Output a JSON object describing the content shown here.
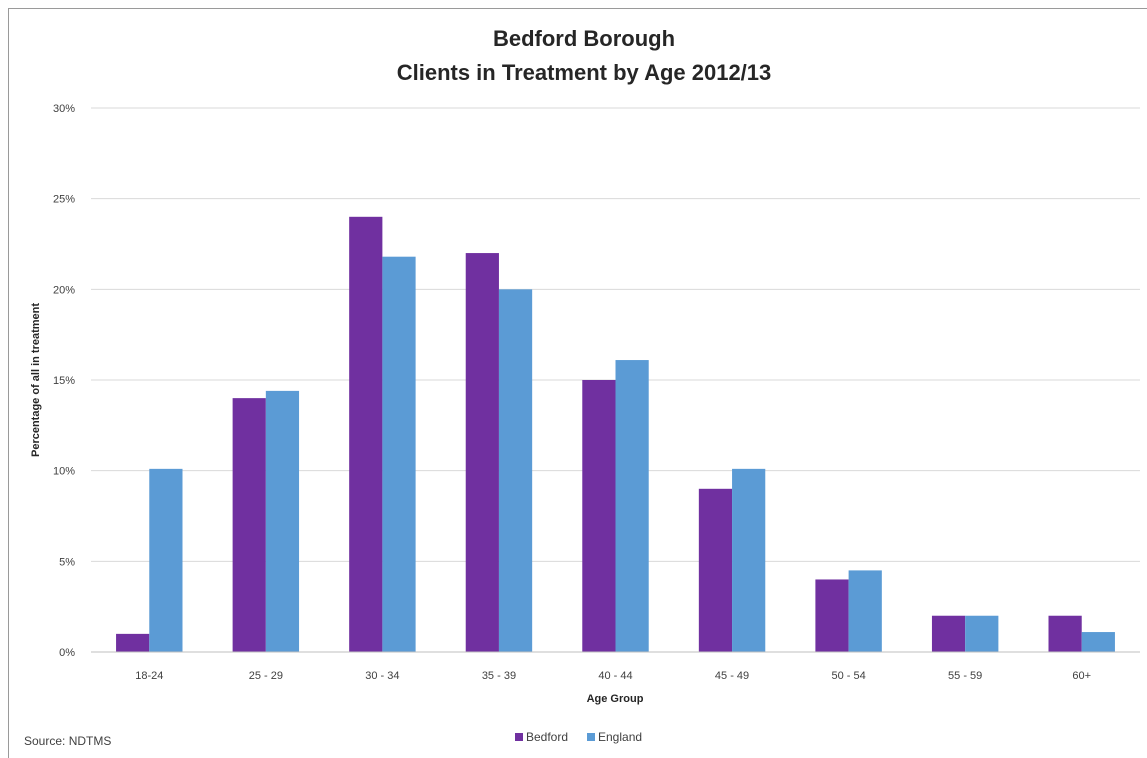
{
  "chart_data": {
    "type": "bar",
    "title": "Bedford Borough",
    "subtitle": "Clients in Treatment by Age 2012/13",
    "xlabel": "Age Group",
    "ylabel": "Percentage of all in treatment",
    "categories": [
      "18-24",
      "25 - 29",
      "30 - 34",
      "35 - 39",
      "40 - 44",
      "45 - 49",
      "50 - 54",
      "55 - 59",
      "60+"
    ],
    "series": [
      {
        "name": "Bedford",
        "color": "#7030a0",
        "values": [
          1,
          14,
          24,
          22,
          15,
          9,
          4,
          2,
          2
        ]
      },
      {
        "name": "England",
        "color": "#5b9bd5",
        "values": [
          10.1,
          14.4,
          21.8,
          20,
          16.1,
          10.1,
          4.5,
          2,
          1.1
        ]
      }
    ],
    "ylim": [
      0,
      30
    ],
    "yticks": [
      0,
      5,
      10,
      15,
      20,
      25,
      30
    ],
    "ytick_labels": [
      "0%",
      "5%",
      "10%",
      "15%",
      "20%",
      "25%",
      "30%"
    ],
    "grid": true,
    "legend_position": "bottom"
  },
  "source": "Source: NDTMS"
}
